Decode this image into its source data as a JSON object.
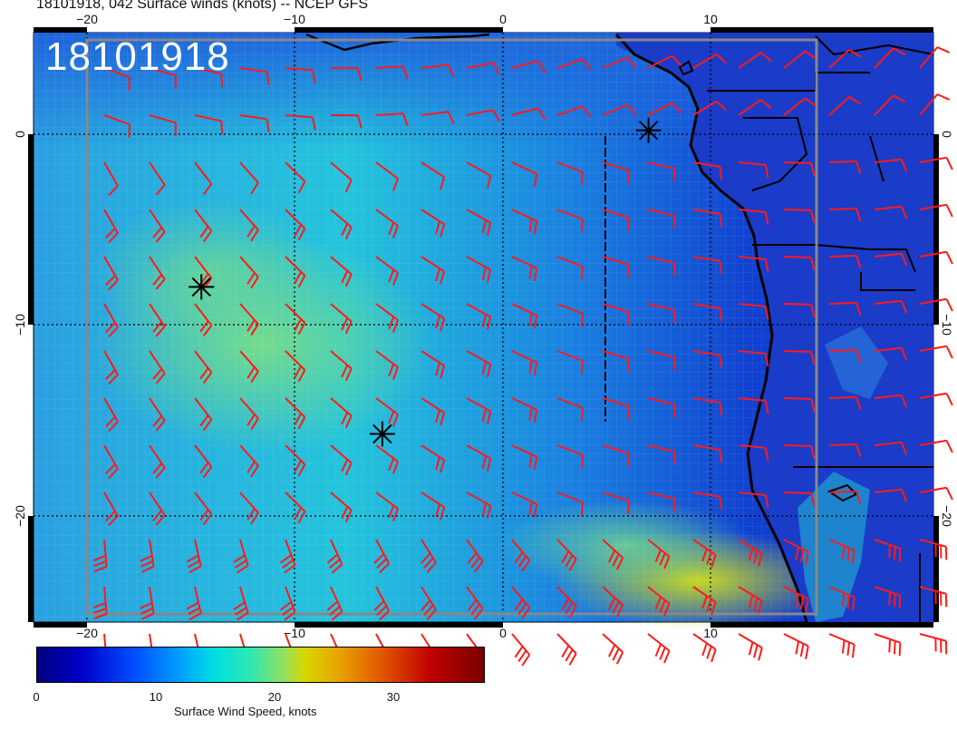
{
  "header": {
    "title": "18101918, 042 Surface winds (knots) -- NCEP GFS",
    "stamp": "18101918"
  },
  "axes": {
    "x_ticks": [
      "−20",
      "−10",
      "0",
      "10"
    ],
    "y_ticks": [
      "0",
      "−10",
      "−20"
    ]
  },
  "colorbar": {
    "ticks": [
      "0",
      "10",
      "20",
      "30"
    ],
    "label": "Surface Wind Speed, knots"
  },
  "colors": {
    "barb": "#ff1a1a",
    "ocean_low": "#1030d0",
    "ocean_mid": "#1fb8e0",
    "ocean_high": "#66d8a0",
    "coast": "#000000"
  },
  "markers": [
    {
      "name": "storm-marker-1",
      "lon": 7,
      "lat": 0.2
    },
    {
      "name": "storm-marker-2",
      "lon": -14.5,
      "lat": -8
    },
    {
      "name": "storm-marker-3",
      "lon": -5.8,
      "lat": -15.7
    }
  ]
}
